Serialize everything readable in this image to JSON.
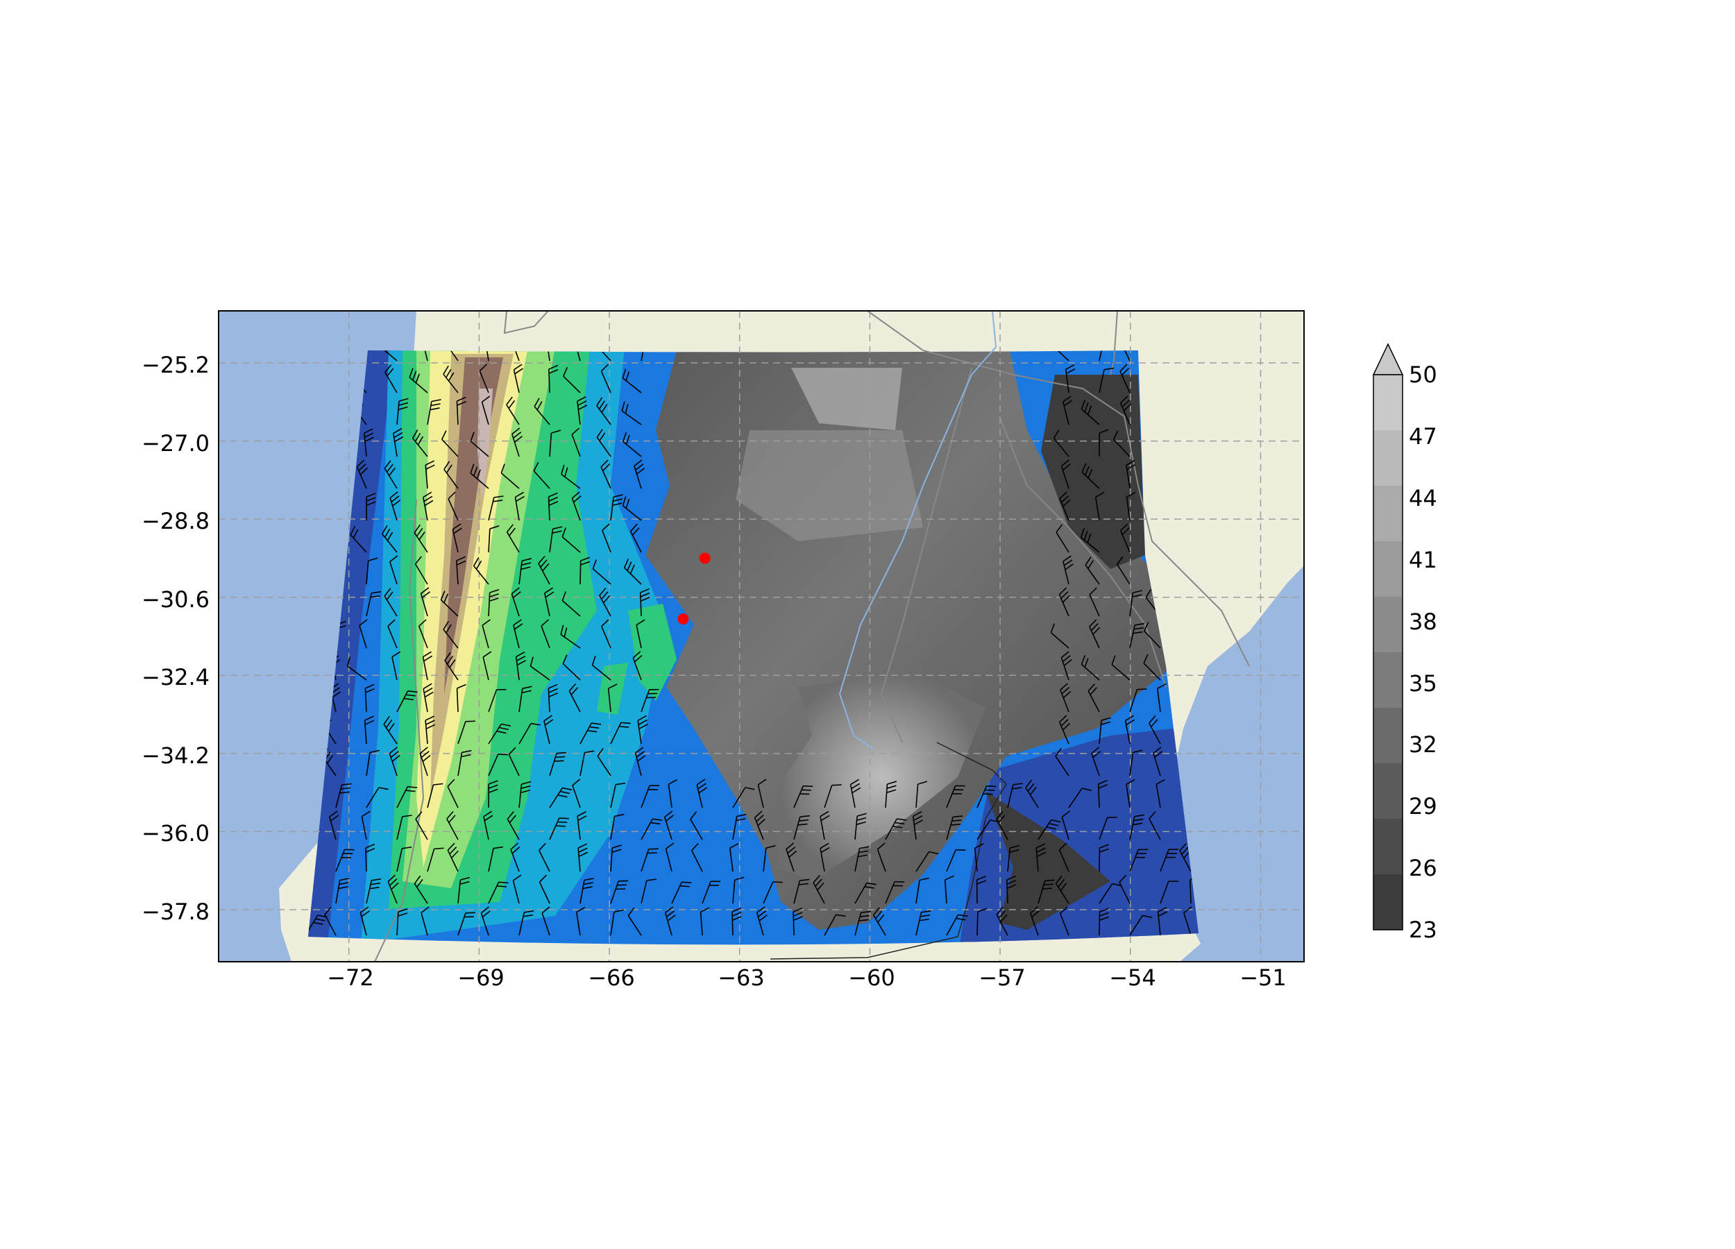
{
  "map": {
    "lon_ticks": [
      "−72",
      "−69",
      "−66",
      "−63",
      "−60",
      "−57",
      "−54",
      "−51"
    ],
    "lat_ticks": [
      "−25.2",
      "−27.0",
      "−28.8",
      "−30.6",
      "−32.4",
      "−34.2",
      "−36.0",
      "−37.8"
    ],
    "lon_extent": [
      -75,
      -50
    ],
    "lat_extent": [
      -24,
      -39
    ],
    "ocean_color": "#9ab8e0",
    "land_color": "#efeedd",
    "gridlines": true,
    "terrain_colors": [
      "#2a4cad",
      "#1a78de",
      "#1aa9d8",
      "#2ec97a",
      "#8fe07a",
      "#f2ef96",
      "#c8b47e",
      "#8e6e60",
      "#c9b6b2"
    ],
    "markers": [
      {
        "lon": -63.8,
        "lat": -29.7,
        "color": "#ff0000"
      },
      {
        "lon": -64.3,
        "lat": -31.1,
        "color": "#ff0000"
      }
    ]
  },
  "colorbar": {
    "ticks": [
      "50",
      "47",
      "44",
      "41",
      "38",
      "35",
      "32",
      "29",
      "26",
      "23"
    ],
    "extend": "max",
    "colors": [
      "#c9c9c9",
      "#bababa",
      "#aaaaaa",
      "#9b9b9b",
      "#8b8b8b",
      "#7c7c7c",
      "#6b6b6b",
      "#5b5b5b",
      "#4c4c4c",
      "#3c3c3c"
    ]
  }
}
